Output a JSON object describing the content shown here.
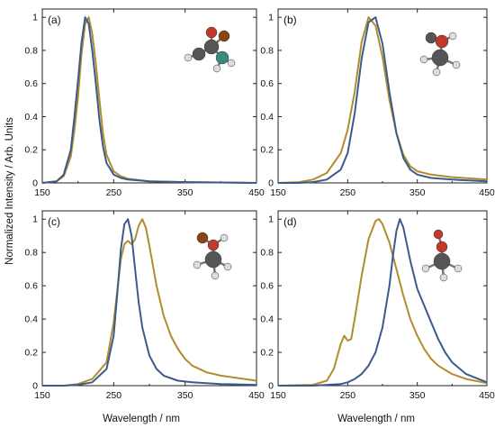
{
  "colors": {
    "blue": "#3c5a8c",
    "gold": "#b08d2a",
    "axis": "#222222"
  },
  "labels": {
    "ylabel": "Normalized Intensity / Arb. Units",
    "xlabel": "Wavelength / nm"
  },
  "chart_data": [
    {
      "panel": "(a)",
      "type": "line",
      "xlim": [
        150,
        450
      ],
      "ylim": [
        0,
        1.05
      ],
      "xticks": [
        150,
        250,
        350,
        450
      ],
      "yticks": [
        0,
        0.2,
        0.4,
        0.6,
        0.8,
        1
      ],
      "molecule": "a",
      "series": [
        {
          "color": "blue",
          "x": [
            150,
            170,
            180,
            190,
            195,
            200,
            205,
            210,
            215,
            220,
            225,
            230,
            235,
            240,
            250,
            260,
            270,
            300,
            350,
            450
          ],
          "y": [
            0,
            0.01,
            0.05,
            0.2,
            0.4,
            0.62,
            0.85,
            1,
            0.96,
            0.8,
            0.6,
            0.38,
            0.22,
            0.12,
            0.05,
            0.03,
            0.02,
            0.01,
            0.005,
            0
          ]
        },
        {
          "color": "gold",
          "x": [
            150,
            170,
            180,
            190,
            195,
            200,
            205,
            210,
            215,
            220,
            225,
            230,
            235,
            240,
            250,
            260,
            270,
            300,
            350,
            450
          ],
          "y": [
            0,
            0.01,
            0.04,
            0.16,
            0.32,
            0.52,
            0.78,
            0.96,
            1,
            0.9,
            0.72,
            0.5,
            0.3,
            0.17,
            0.07,
            0.04,
            0.025,
            0.01,
            0.005,
            0
          ]
        }
      ]
    },
    {
      "panel": "(b)",
      "type": "line",
      "xlim": [
        150,
        450
      ],
      "ylim": [
        0,
        1.05
      ],
      "xticks": [
        150,
        250,
        350,
        450
      ],
      "yticks": [
        0,
        0.2,
        0.4,
        0.6,
        0.8,
        1
      ],
      "molecule": "b",
      "series": [
        {
          "color": "blue",
          "x": [
            150,
            180,
            200,
            220,
            240,
            250,
            260,
            270,
            280,
            290,
            300,
            310,
            320,
            330,
            340,
            350,
            370,
            400,
            450
          ],
          "y": [
            0,
            0,
            0.005,
            0.02,
            0.08,
            0.18,
            0.42,
            0.75,
            0.97,
            1,
            0.84,
            0.55,
            0.3,
            0.15,
            0.08,
            0.05,
            0.03,
            0.02,
            0.01
          ]
        },
        {
          "color": "gold",
          "x": [
            150,
            180,
            200,
            220,
            240,
            250,
            260,
            270,
            280,
            290,
            300,
            310,
            320,
            330,
            340,
            350,
            370,
            400,
            450
          ],
          "y": [
            0,
            0.005,
            0.02,
            0.06,
            0.18,
            0.32,
            0.55,
            0.85,
            1,
            0.95,
            0.76,
            0.5,
            0.3,
            0.17,
            0.1,
            0.07,
            0.05,
            0.035,
            0.02
          ]
        }
      ]
    },
    {
      "panel": "(c)",
      "type": "line",
      "xlim": [
        150,
        450
      ],
      "ylim": [
        0,
        1.05
      ],
      "xticks": [
        150,
        250,
        350,
        450
      ],
      "yticks": [
        0,
        0.2,
        0.4,
        0.6,
        0.8,
        1
      ],
      "molecule": "c",
      "series": [
        {
          "color": "blue",
          "x": [
            150,
            180,
            200,
            220,
            240,
            250,
            255,
            260,
            265,
            270,
            275,
            280,
            285,
            290,
            300,
            310,
            320,
            340,
            360,
            400,
            450
          ],
          "y": [
            0,
            0,
            0.005,
            0.02,
            0.1,
            0.3,
            0.55,
            0.82,
            0.97,
            1,
            0.9,
            0.7,
            0.5,
            0.35,
            0.18,
            0.1,
            0.06,
            0.03,
            0.02,
            0.01,
            0.005
          ]
        },
        {
          "color": "gold",
          "x": [
            150,
            180,
            200,
            220,
            240,
            250,
            260,
            265,
            270,
            275,
            280,
            285,
            290,
            295,
            300,
            310,
            320,
            330,
            340,
            350,
            360,
            380,
            400,
            450
          ],
          "y": [
            0,
            0,
            0.01,
            0.04,
            0.14,
            0.38,
            0.76,
            0.85,
            0.87,
            0.85,
            0.88,
            0.96,
            1,
            0.95,
            0.84,
            0.6,
            0.42,
            0.3,
            0.22,
            0.16,
            0.12,
            0.08,
            0.06,
            0.03
          ]
        }
      ]
    },
    {
      "panel": "(d)",
      "type": "line",
      "xlim": [
        150,
        450
      ],
      "ylim": [
        0,
        1.05
      ],
      "xticks": [
        150,
        250,
        350,
        450
      ],
      "yticks": [
        0,
        0.2,
        0.4,
        0.6,
        0.8,
        1
      ],
      "molecule": "d",
      "series": [
        {
          "color": "blue",
          "x": [
            150,
            200,
            220,
            240,
            250,
            260,
            270,
            280,
            290,
            300,
            310,
            315,
            320,
            325,
            330,
            340,
            350,
            360,
            370,
            380,
            390,
            400,
            420,
            450
          ],
          "y": [
            0,
            0,
            0.005,
            0.01,
            0.02,
            0.04,
            0.07,
            0.12,
            0.2,
            0.35,
            0.6,
            0.78,
            0.93,
            1,
            0.95,
            0.75,
            0.58,
            0.48,
            0.38,
            0.28,
            0.2,
            0.14,
            0.07,
            0.02
          ]
        },
        {
          "color": "gold",
          "x": [
            150,
            200,
            220,
            230,
            240,
            245,
            250,
            255,
            260,
            270,
            280,
            290,
            295,
            300,
            310,
            320,
            330,
            340,
            350,
            360,
            370,
            380,
            400,
            420,
            450
          ],
          "y": [
            0,
            0.005,
            0.03,
            0.1,
            0.25,
            0.3,
            0.27,
            0.28,
            0.4,
            0.66,
            0.88,
            0.99,
            1,
            0.97,
            0.86,
            0.7,
            0.54,
            0.4,
            0.3,
            0.22,
            0.16,
            0.12,
            0.07,
            0.04,
            0.015
          ]
        }
      ]
    }
  ]
}
